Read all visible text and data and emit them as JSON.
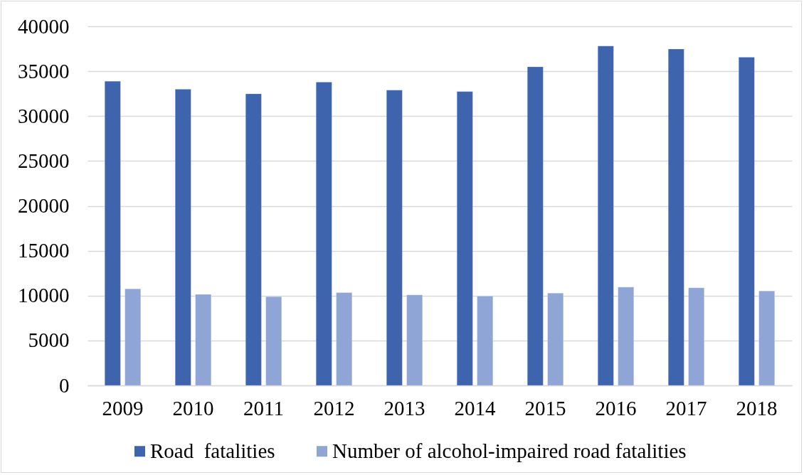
{
  "chart_data": {
    "type": "bar",
    "categories": [
      "2009",
      "2010",
      "2011",
      "2012",
      "2013",
      "2014",
      "2015",
      "2016",
      "2017",
      "2018"
    ],
    "series": [
      {
        "name": "Road  fatalities",
        "color": "#3e64ad",
        "values": [
          33880,
          33000,
          32480,
          33780,
          32890,
          32730,
          35480,
          37810,
          37470,
          36560
        ]
      },
      {
        "name": "Number of alcohol-impaired road fatalities",
        "color": "#8fa5d5",
        "values": [
          10760,
          10140,
          9880,
          10340,
          10080,
          9940,
          10270,
          10960,
          10870,
          10510
        ]
      }
    ],
    "ylim": [
      0,
      40000
    ],
    "yticks": [
      0,
      5000,
      10000,
      15000,
      20000,
      25000,
      30000,
      35000,
      40000
    ],
    "grid": "y",
    "legend": "bottom"
  }
}
